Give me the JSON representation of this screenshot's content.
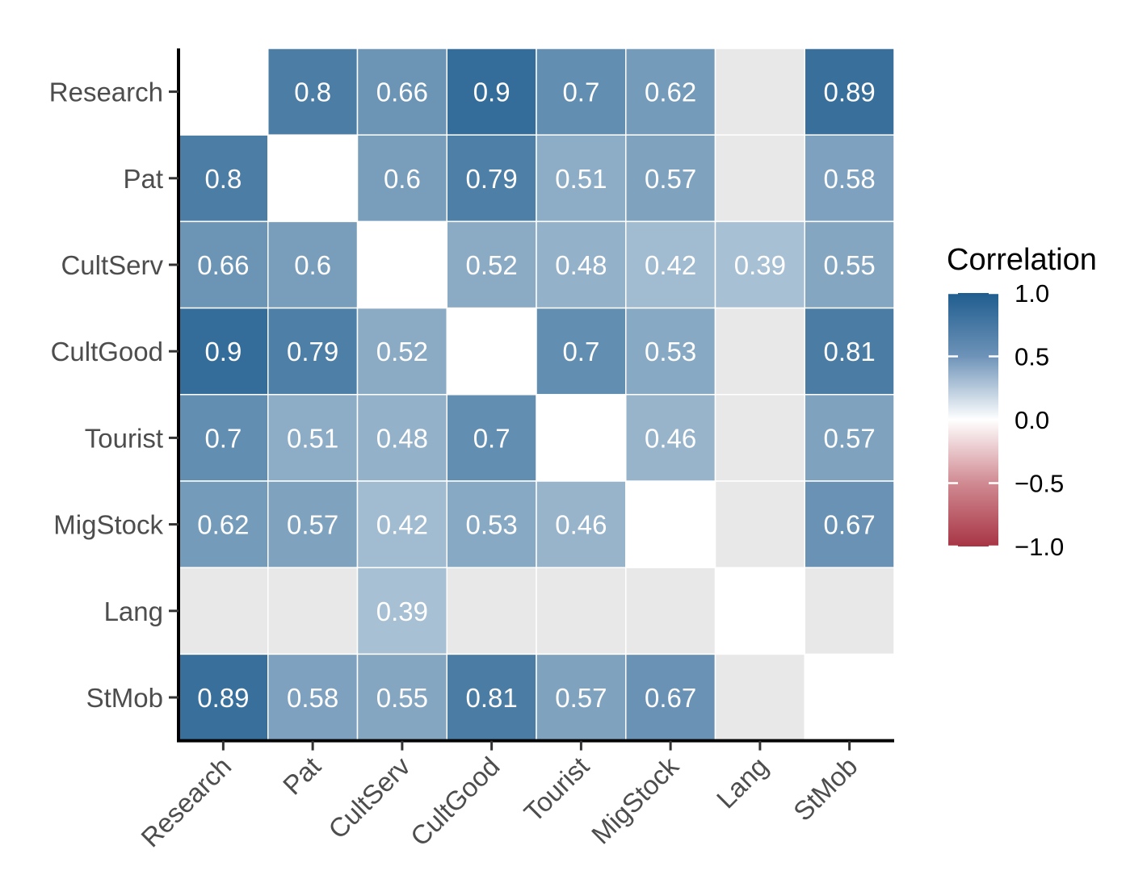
{
  "chart_data": {
    "type": "heatmap",
    "title": "",
    "xlabel": "",
    "ylabel": "",
    "variables": [
      "Research",
      "Pat",
      "CultServ",
      "CultGood",
      "Tourist",
      "MigStock",
      "Lang",
      "StMob"
    ],
    "matrix": [
      [
        null,
        0.8,
        0.66,
        0.9,
        0.7,
        0.62,
        "NA",
        0.89
      ],
      [
        0.8,
        null,
        0.6,
        0.79,
        0.51,
        0.57,
        "NA",
        0.58
      ],
      [
        0.66,
        0.6,
        null,
        0.52,
        0.48,
        0.42,
        0.39,
        0.55
      ],
      [
        0.9,
        0.79,
        0.52,
        null,
        0.7,
        0.53,
        "NA",
        0.81
      ],
      [
        0.7,
        0.51,
        0.48,
        0.7,
        null,
        0.46,
        "NA",
        0.57
      ],
      [
        0.62,
        0.57,
        0.42,
        0.53,
        0.46,
        null,
        "NA",
        0.67
      ],
      [
        "NA",
        "NA",
        0.39,
        "NA",
        "NA",
        "NA",
        null,
        "NA"
      ],
      [
        0.89,
        0.58,
        0.55,
        0.81,
        0.57,
        0.67,
        "NA",
        null
      ]
    ],
    "diagonal": "blank",
    "non_significant": "grey",
    "legend": {
      "title": "Correlation",
      "position": "right",
      "breaks": [
        1.0,
        0.5,
        0.0,
        -0.5,
        -1.0
      ],
      "break_labels": [
        "1.0",
        "0.5",
        "0.0",
        "−0.5",
        "−1.0"
      ],
      "limits": [
        -1,
        1
      ]
    },
    "colors": {
      "high": "#1f5d8f",
      "mid": "#ffffff",
      "low": "#b23a48",
      "na": "#e8e8e8",
      "cell_text": "#ffffff",
      "axis_text": "#4d4d4d"
    }
  }
}
